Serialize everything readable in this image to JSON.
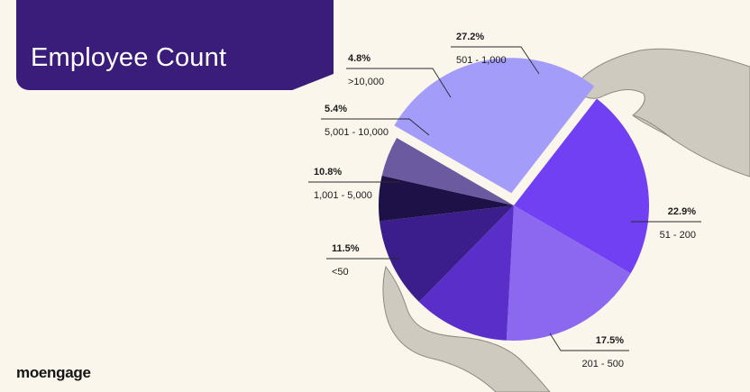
{
  "title": "Employee Count",
  "brand": "moengage",
  "chart_data": {
    "type": "pie",
    "title": "Employee Count",
    "slices": [
      {
        "label": "501 - 1,000",
        "value": 27.2,
        "pct_label": "27.2%",
        "color": "#a39cf9"
      },
      {
        "label": "51 - 200",
        "value": 22.9,
        "pct_label": "22.9%",
        "color": "#7040f2"
      },
      {
        "label": "201 - 500",
        "value": 17.5,
        "pct_label": "17.5%",
        "color": "#8b68ef"
      },
      {
        "label": "<50",
        "value": 11.5,
        "pct_label": "11.5%",
        "color": "#5a2fc9"
      },
      {
        "label": "1,001 - 5,000",
        "value": 10.8,
        "pct_label": "10.8%",
        "color": "#3b1e8c"
      },
      {
        "label": "5,001 - 10,000",
        "value": 5.4,
        "pct_label": "5.4%",
        "color": "#1e1147"
      },
      {
        "label": ">10,000",
        "value": 4.8,
        "pct_label": "4.8%",
        "color": "#6b5aa0"
      }
    ]
  }
}
